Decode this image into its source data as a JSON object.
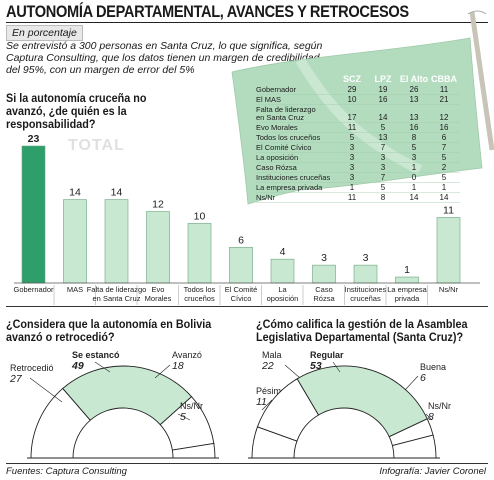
{
  "header": {
    "title": "AUTONOMÍA DEPARTAMENTAL, AVANCES Y RETROCESOS",
    "badge": "En porcentaje",
    "intro": "Se entrevistó a 300 personas en Santa Cruz, lo que significa, según Captura Consulting, que los datos tienen un margen de credibilidad del 95%, con un margen de error del 5%"
  },
  "colors": {
    "highlight": "#2e9e6b",
    "bar": "#c9e8d2",
    "flag": "#b3dcbf",
    "hemi": "#c9e8d2"
  },
  "chart_data": [
    {
      "type": "bar",
      "title": "Si la autonomía cruceña no avanzó, ¿de quién es la responsabilidad?",
      "watermark": "TOTAL",
      "categories": [
        "Gobernador",
        "MAS",
        "Falta de liderazgo en Santa Cruz",
        "Evo Morales",
        "Todos los cruceños",
        "El Comité Cívico",
        "La oposición",
        "Caso Rózsa",
        "Instituciones cruceñas",
        "La empresa privada",
        "Ns/Nr"
      ],
      "tick_labels": [
        [
          "Gobernador"
        ],
        [
          "MAS"
        ],
        [
          "Falta de liderazgo",
          "en Santa Cruz"
        ],
        [
          "Evo",
          "Morales"
        ],
        [
          "Todos los",
          "cruceños"
        ],
        [
          "El Comité",
          "Cívico"
        ],
        [
          "La",
          "oposición"
        ],
        [
          "Caso",
          "Rózsa"
        ],
        [
          "Instituciones",
          "cruceñas"
        ],
        [
          "La empresa",
          "privada"
        ],
        [
          "Ns/Nr"
        ]
      ],
      "values": [
        23,
        14,
        14,
        12,
        10,
        6,
        4,
        3,
        3,
        1,
        11
      ],
      "ylim": [
        0,
        23
      ]
    },
    {
      "type": "table",
      "columns": [
        "SCZ",
        "LPZ",
        "El Alto",
        "CBBA"
      ],
      "rows": [
        {
          "label": [
            "Gobernador"
          ],
          "values": [
            29,
            19,
            26,
            11
          ]
        },
        {
          "label": [
            "El MAS"
          ],
          "values": [
            10,
            16,
            13,
            21
          ]
        },
        {
          "label": [
            "Falta de liderazgo",
            "en Santa Cruz"
          ],
          "values": [
            17,
            14,
            13,
            12
          ]
        },
        {
          "label": [
            "Evo  Morales"
          ],
          "values": [
            11,
            5,
            16,
            16
          ]
        },
        {
          "label": [
            "Todos los cruceños"
          ],
          "values": [
            5,
            13,
            8,
            6
          ]
        },
        {
          "label": [
            "El Comité Cívico"
          ],
          "values": [
            3,
            7,
            5,
            7
          ]
        },
        {
          "label": [
            "La oposición"
          ],
          "values": [
            3,
            3,
            3,
            5
          ]
        },
        {
          "label": [
            "Caso Rózsa"
          ],
          "values": [
            3,
            3,
            1,
            2
          ]
        },
        {
          "label": [
            "Instituciones cruceñas"
          ],
          "values": [
            3,
            7,
            0,
            5
          ]
        },
        {
          "label": [
            "La empresa privada"
          ],
          "values": [
            1,
            5,
            1,
            1
          ]
        },
        {
          "label": [
            "Ns/Nr"
          ],
          "values": [
            11,
            8,
            14,
            14
          ]
        }
      ]
    },
    {
      "type": "pie",
      "title": "¿Considera que la autonomía en Bolivia avanzó o retrocedió?",
      "slices": [
        {
          "label": "Retrocedió",
          "value": 27,
          "highlight": false
        },
        {
          "label": "Se estancó",
          "value": 49,
          "highlight": true
        },
        {
          "label": "Avanzó",
          "value": 18,
          "highlight": false
        },
        {
          "label": "Ns/Nr",
          "value": 5,
          "highlight": false
        }
      ]
    },
    {
      "type": "pie",
      "title": "¿Cómo califica la gestión de la Asamblea Legislativa Departamental (Santa Cruz)?",
      "slices": [
        {
          "label": "Pésima",
          "value": 11,
          "highlight": false
        },
        {
          "label": "Mala",
          "value": 22,
          "highlight": false
        },
        {
          "label": "Regular",
          "value": 53,
          "highlight": true
        },
        {
          "label": "Buena",
          "value": 6,
          "highlight": false
        },
        {
          "label": "Ns/Nr",
          "value": 8,
          "highlight": false
        }
      ]
    }
  ],
  "footer": {
    "source": "Fuentes: Captura Consulting",
    "credit": "Infografía: Javier Coronel"
  }
}
